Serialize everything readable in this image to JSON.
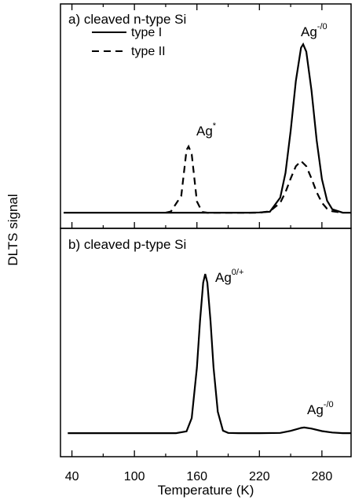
{
  "chart_data": [
    {
      "type": "line",
      "title": "a)  cleaved n-type Si",
      "ylabel": "DLTS signal",
      "xlim": [
        29,
        308
      ],
      "xticks": [
        40,
        100,
        160,
        220,
        280
      ],
      "xminorticks": [
        70,
        130,
        190,
        250
      ],
      "ylim": [
        0,
        1
      ],
      "legend": "upper left",
      "series": [
        {
          "name": "type I",
          "color": "#000000",
          "dash": "solid",
          "x": [
            32,
            60,
            90,
            120,
            150,
            180,
            200,
            210,
            220,
            230,
            240,
            245,
            250,
            255,
            260,
            262,
            265,
            270,
            275,
            280,
            285,
            290,
            300,
            308
          ],
          "values": [
            0.07,
            0.07,
            0.07,
            0.07,
            0.07,
            0.07,
            0.07,
            0.07,
            0.071,
            0.074,
            0.137,
            0.247,
            0.435,
            0.657,
            0.805,
            0.82,
            0.787,
            0.615,
            0.392,
            0.219,
            0.123,
            0.085,
            0.07,
            0.07
          ]
        },
        {
          "name": "type II",
          "color": "#000000",
          "dash": "dashed",
          "x": [
            130,
            135,
            140,
            145,
            150,
            152,
            155,
            160,
            165,
            170,
            180,
            200,
            220,
            230,
            240,
            245,
            250,
            255,
            260,
            265,
            270,
            275,
            280,
            285,
            290,
            300
          ],
          "values": [
            0.07,
            0.075,
            0.11,
            0.145,
            0.349,
            0.365,
            0.33,
            0.12,
            0.073,
            0.07,
            0.07,
            0.07,
            0.07,
            0.076,
            0.114,
            0.161,
            0.222,
            0.277,
            0.3,
            0.277,
            0.222,
            0.161,
            0.114,
            0.087,
            0.076,
            0.07
          ]
        }
      ],
      "annotations": [
        {
          "text": "Ag",
          "sup": "-/0"
        },
        {
          "text": "Ag",
          "sup": "*"
        }
      ]
    },
    {
      "type": "line",
      "title": "b)  cleaved p-type Si",
      "xlabel": "Temperature (K)",
      "xlim": [
        29,
        308
      ],
      "xticks": [
        40,
        100,
        160,
        220,
        280
      ],
      "xminorticks": [
        70,
        130,
        190,
        250
      ],
      "ylim": [
        0,
        1
      ],
      "series": [
        {
          "color": "#000000",
          "dash": "solid",
          "x": [
            36,
            60,
            90,
            120,
            140,
            150,
            155,
            160,
            163,
            166,
            168,
            170,
            173,
            176,
            180,
            185,
            190,
            200,
            220,
            240,
            250,
            260,
            263,
            270,
            280,
            290,
            300,
            308
          ],
          "values": [
            0.103,
            0.103,
            0.103,
            0.103,
            0.103,
            0.111,
            0.169,
            0.39,
            0.596,
            0.762,
            0.8,
            0.762,
            0.596,
            0.39,
            0.197,
            0.114,
            0.104,
            0.103,
            0.103,
            0.104,
            0.113,
            0.126,
            0.128,
            0.123,
            0.112,
            0.106,
            0.103,
            0.103
          ]
        }
      ],
      "annotations": [
        {
          "text": "Ag",
          "sup": "0/+"
        },
        {
          "text": "Ag",
          "sup": "-/0"
        }
      ]
    }
  ]
}
